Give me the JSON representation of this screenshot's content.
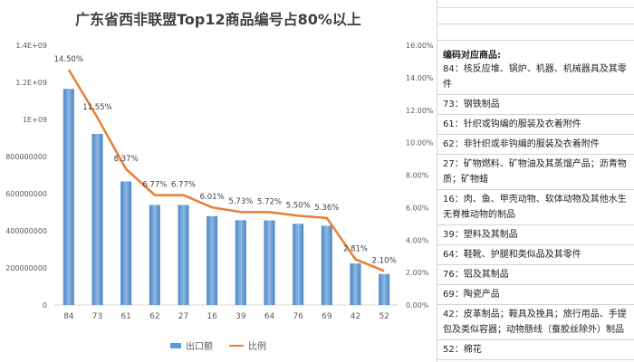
{
  "chart_data": {
    "type": "bar",
    "title": "广东省西非联盟Top12商品编号占80%以上",
    "categories": [
      "84",
      "73",
      "61",
      "62",
      "27",
      "16",
      "39",
      "64",
      "76",
      "69",
      "42",
      "52"
    ],
    "series": [
      {
        "name": "出口额",
        "type": "bar",
        "axis": "left",
        "values": [
          1165000000,
          922000000,
          666000000,
          539000000,
          539000000,
          479000000,
          457000000,
          456000000,
          438000000,
          427000000,
          224000000,
          167000000
        ]
      },
      {
        "name": "比例",
        "type": "line",
        "axis": "right",
        "values": [
          14.5,
          11.55,
          8.37,
          6.77,
          6.77,
          6.01,
          5.73,
          5.72,
          5.5,
          5.36,
          2.81,
          2.1
        ]
      }
    ],
    "data_labels": [
      "14.50%",
      "11.55%",
      "8.37%",
      "6.77%",
      "6.77%",
      "6.01%",
      "5.73%",
      "5.72%",
      "5.50%",
      "5.36%",
      "2.81%",
      "2.10%"
    ],
    "y_left": {
      "ylim": [
        0,
        1400000000
      ],
      "ticks": [
        "0",
        "200000000",
        "400000000",
        "600000000",
        "800000000",
        "1E+09",
        "1.2E+09",
        "1.4E+09"
      ]
    },
    "y_right": {
      "ylim": [
        0,
        16
      ],
      "ticks": [
        "0.00%",
        "2.00%",
        "4.00%",
        "6.00%",
        "8.00%",
        "10.00%",
        "12.00%",
        "14.00%",
        "16.00%"
      ]
    },
    "legend_position": "bottom",
    "grid": false,
    "colors": {
      "bar": "#5b9bd5",
      "line": "#ed7d31"
    }
  },
  "sidebar": {
    "heading": "编码对应商品:",
    "items": [
      "84：核反应堆、锅炉、机器、机械器具及其零件",
      "73：钢铁制品",
      "61：针织或钩编的服装及衣着附件",
      "62：非针织或非钩编的服装及衣着附件",
      "27：矿物燃料、矿物油及其蒸馏产品；沥青物质；矿物蜡",
      "16：肉、鱼、甲壳动物、软体动物及其他水生无脊椎动物的制品",
      "39：塑料及其制品",
      "64：鞋靴、护腿和类似品及其零件",
      "76：铝及其制品",
      "69：陶瓷产品",
      "42：皮革制品；鞍具及挽具；旅行用品、手提包及类似容器；动物肠线（蚕胶丝除外）制品",
      "52：棉花"
    ]
  }
}
